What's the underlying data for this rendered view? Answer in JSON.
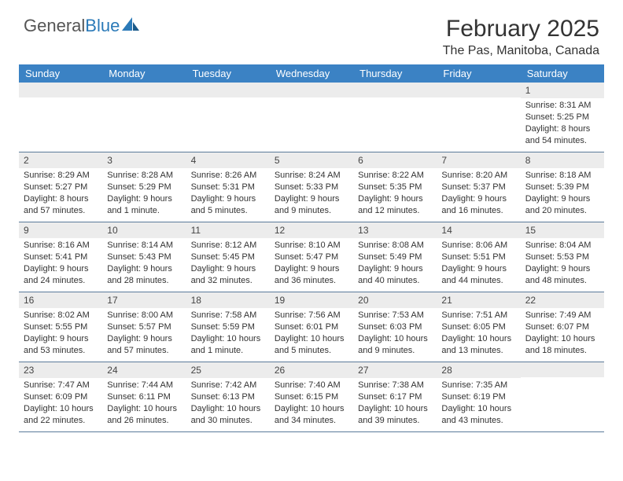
{
  "logo": {
    "text1": "General",
    "text2": "Blue"
  },
  "title": "February 2025",
  "location": "The Pas, Manitoba, Canada",
  "colors": {
    "header_bg": "#3b82c4",
    "header_text": "#ffffff",
    "date_bg": "#ececec",
    "border": "#5a7a9a",
    "text": "#333333",
    "logo_gray": "#555555",
    "logo_blue": "#2b7ab8"
  },
  "day_names": [
    "Sunday",
    "Monday",
    "Tuesday",
    "Wednesday",
    "Thursday",
    "Friday",
    "Saturday"
  ],
  "weeks": [
    [
      {
        "n": "",
        "lines": []
      },
      {
        "n": "",
        "lines": []
      },
      {
        "n": "",
        "lines": []
      },
      {
        "n": "",
        "lines": []
      },
      {
        "n": "",
        "lines": []
      },
      {
        "n": "",
        "lines": []
      },
      {
        "n": "1",
        "lines": [
          "Sunrise: 8:31 AM",
          "Sunset: 5:25 PM",
          "Daylight: 8 hours and 54 minutes."
        ]
      }
    ],
    [
      {
        "n": "2",
        "lines": [
          "Sunrise: 8:29 AM",
          "Sunset: 5:27 PM",
          "Daylight: 8 hours and 57 minutes."
        ]
      },
      {
        "n": "3",
        "lines": [
          "Sunrise: 8:28 AM",
          "Sunset: 5:29 PM",
          "Daylight: 9 hours and 1 minute."
        ]
      },
      {
        "n": "4",
        "lines": [
          "Sunrise: 8:26 AM",
          "Sunset: 5:31 PM",
          "Daylight: 9 hours and 5 minutes."
        ]
      },
      {
        "n": "5",
        "lines": [
          "Sunrise: 8:24 AM",
          "Sunset: 5:33 PM",
          "Daylight: 9 hours and 9 minutes."
        ]
      },
      {
        "n": "6",
        "lines": [
          "Sunrise: 8:22 AM",
          "Sunset: 5:35 PM",
          "Daylight: 9 hours and 12 minutes."
        ]
      },
      {
        "n": "7",
        "lines": [
          "Sunrise: 8:20 AM",
          "Sunset: 5:37 PM",
          "Daylight: 9 hours and 16 minutes."
        ]
      },
      {
        "n": "8",
        "lines": [
          "Sunrise: 8:18 AM",
          "Sunset: 5:39 PM",
          "Daylight: 9 hours and 20 minutes."
        ]
      }
    ],
    [
      {
        "n": "9",
        "lines": [
          "Sunrise: 8:16 AM",
          "Sunset: 5:41 PM",
          "Daylight: 9 hours and 24 minutes."
        ]
      },
      {
        "n": "10",
        "lines": [
          "Sunrise: 8:14 AM",
          "Sunset: 5:43 PM",
          "Daylight: 9 hours and 28 minutes."
        ]
      },
      {
        "n": "11",
        "lines": [
          "Sunrise: 8:12 AM",
          "Sunset: 5:45 PM",
          "Daylight: 9 hours and 32 minutes."
        ]
      },
      {
        "n": "12",
        "lines": [
          "Sunrise: 8:10 AM",
          "Sunset: 5:47 PM",
          "Daylight: 9 hours and 36 minutes."
        ]
      },
      {
        "n": "13",
        "lines": [
          "Sunrise: 8:08 AM",
          "Sunset: 5:49 PM",
          "Daylight: 9 hours and 40 minutes."
        ]
      },
      {
        "n": "14",
        "lines": [
          "Sunrise: 8:06 AM",
          "Sunset: 5:51 PM",
          "Daylight: 9 hours and 44 minutes."
        ]
      },
      {
        "n": "15",
        "lines": [
          "Sunrise: 8:04 AM",
          "Sunset: 5:53 PM",
          "Daylight: 9 hours and 48 minutes."
        ]
      }
    ],
    [
      {
        "n": "16",
        "lines": [
          "Sunrise: 8:02 AM",
          "Sunset: 5:55 PM",
          "Daylight: 9 hours and 53 minutes."
        ]
      },
      {
        "n": "17",
        "lines": [
          "Sunrise: 8:00 AM",
          "Sunset: 5:57 PM",
          "Daylight: 9 hours and 57 minutes."
        ]
      },
      {
        "n": "18",
        "lines": [
          "Sunrise: 7:58 AM",
          "Sunset: 5:59 PM",
          "Daylight: 10 hours and 1 minute."
        ]
      },
      {
        "n": "19",
        "lines": [
          "Sunrise: 7:56 AM",
          "Sunset: 6:01 PM",
          "Daylight: 10 hours and 5 minutes."
        ]
      },
      {
        "n": "20",
        "lines": [
          "Sunrise: 7:53 AM",
          "Sunset: 6:03 PM",
          "Daylight: 10 hours and 9 minutes."
        ]
      },
      {
        "n": "21",
        "lines": [
          "Sunrise: 7:51 AM",
          "Sunset: 6:05 PM",
          "Daylight: 10 hours and 13 minutes."
        ]
      },
      {
        "n": "22",
        "lines": [
          "Sunrise: 7:49 AM",
          "Sunset: 6:07 PM",
          "Daylight: 10 hours and 18 minutes."
        ]
      }
    ],
    [
      {
        "n": "23",
        "lines": [
          "Sunrise: 7:47 AM",
          "Sunset: 6:09 PM",
          "Daylight: 10 hours and 22 minutes."
        ]
      },
      {
        "n": "24",
        "lines": [
          "Sunrise: 7:44 AM",
          "Sunset: 6:11 PM",
          "Daylight: 10 hours and 26 minutes."
        ]
      },
      {
        "n": "25",
        "lines": [
          "Sunrise: 7:42 AM",
          "Sunset: 6:13 PM",
          "Daylight: 10 hours and 30 minutes."
        ]
      },
      {
        "n": "26",
        "lines": [
          "Sunrise: 7:40 AM",
          "Sunset: 6:15 PM",
          "Daylight: 10 hours and 34 minutes."
        ]
      },
      {
        "n": "27",
        "lines": [
          "Sunrise: 7:38 AM",
          "Sunset: 6:17 PM",
          "Daylight: 10 hours and 39 minutes."
        ]
      },
      {
        "n": "28",
        "lines": [
          "Sunrise: 7:35 AM",
          "Sunset: 6:19 PM",
          "Daylight: 10 hours and 43 minutes."
        ]
      },
      {
        "n": "",
        "lines": []
      }
    ]
  ]
}
